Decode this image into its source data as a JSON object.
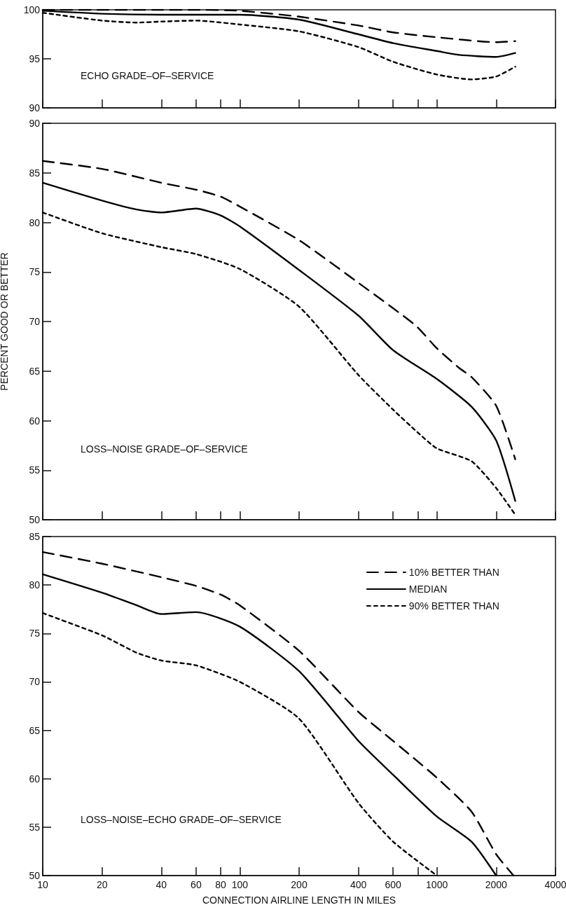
{
  "chart_data": [
    {
      "type": "line",
      "annotations": [
        "ECHO GRADE–OF–SERVICE"
      ],
      "log": "x",
      "xlim": [
        10,
        4000
      ],
      "xticks": [
        10,
        20,
        40,
        60,
        80,
        100,
        200,
        400,
        600,
        800,
        1000,
        2000,
        4000
      ],
      "ylim": [
        90,
        100
      ],
      "yticks": [
        90,
        95,
        100
      ],
      "tick_labels": "y",
      "grid": false,
      "marker": "none",
      "series": [
        {
          "color": "#000000",
          "line_style": "longdash",
          "x": [
            10,
            20,
            40,
            60,
            100,
            200,
            400,
            600,
            1000,
            2000,
            2500
          ],
          "values": [
            100,
            100,
            100,
            100,
            99.9,
            99.3,
            98.4,
            97.7,
            97.2,
            96.7,
            96.8
          ]
        },
        {
          "color": "#000000",
          "line_style": "solid",
          "x": [
            10,
            20,
            40,
            60,
            100,
            200,
            400,
            600,
            1000,
            1300,
            2000,
            2500
          ],
          "values": [
            99.9,
            99.6,
            99.5,
            99.5,
            99.5,
            99.0,
            97.5,
            96.6,
            95.8,
            95.4,
            95.2,
            95.6
          ]
        },
        {
          "color": "#000000",
          "line_style": "dashed",
          "x": [
            10,
            20,
            30,
            40,
            60,
            100,
            200,
            400,
            600,
            1000,
            1500,
            2000,
            2500
          ],
          "values": [
            99.7,
            98.9,
            98.7,
            98.8,
            98.9,
            98.5,
            97.8,
            96.2,
            94.7,
            93.4,
            92.9,
            93.2,
            94.2
          ]
        }
      ]
    },
    {
      "type": "line",
      "ylabel": "PERCENT GOOD OR BETTER",
      "annotations": [
        "LOSS–NOISE GRADE–OF–SERVICE"
      ],
      "log": "x",
      "xlim": [
        10,
        4000
      ],
      "xticks": [
        10,
        20,
        40,
        60,
        80,
        100,
        200,
        400,
        600,
        800,
        1000,
        2000,
        4000
      ],
      "ylim": [
        50,
        90
      ],
      "yticks": [
        50,
        55,
        60,
        65,
        70,
        75,
        80,
        85,
        90
      ],
      "tick_labels": "y",
      "grid": false,
      "marker": "none",
      "series": [
        {
          "color": "#000000",
          "line_style": "longdash",
          "x": [
            10,
            20,
            40,
            60,
            80,
            100,
            200,
            400,
            780,
            1000,
            1300,
            1500,
            2000,
            2500
          ],
          "values": [
            86.2,
            85.4,
            84.0,
            83.3,
            82.6,
            81.6,
            78.2,
            73.9,
            69.6,
            67.3,
            65.3,
            64.4,
            61.5,
            56.1
          ]
        },
        {
          "color": "#000000",
          "line_style": "solid",
          "x": [
            10,
            20,
            30,
            40,
            60,
            80,
            100,
            200,
            400,
            600,
            1000,
            1500,
            2000,
            2500
          ],
          "values": [
            84.0,
            82.2,
            81.3,
            81.0,
            81.4,
            80.7,
            79.6,
            75.2,
            70.6,
            67.1,
            64.2,
            61.4,
            58.0,
            51.9
          ]
        },
        {
          "color": "#000000",
          "line_style": "dashed",
          "x": [
            10,
            20,
            40,
            60,
            100,
            200,
            400,
            600,
            800,
            1000,
            1500,
            2000,
            2500
          ],
          "values": [
            81.0,
            78.9,
            77.5,
            76.8,
            75.3,
            71.5,
            64.6,
            61.1,
            58.8,
            57.2,
            55.9,
            53.2,
            50.5
          ]
        }
      ]
    },
    {
      "type": "line",
      "xlabel": "CONNECTION AIRLINE LENGTH IN MILES",
      "annotations": [
        "LOSS–NOISE–ECHO GRADE–OF–SERVICE"
      ],
      "log": "x",
      "xlim": [
        10,
        4000
      ],
      "xticks": [
        10,
        20,
        40,
        60,
        80,
        100,
        200,
        400,
        600,
        {
          "value": 800,
          "label": null
        },
        1000,
        2000,
        4000
      ],
      "ylim": [
        50,
        85
      ],
      "yticks": [
        50,
        55,
        60,
        65,
        70,
        75,
        80,
        85
      ],
      "grid": false,
      "marker": "none",
      "legend": "top right",
      "series": [
        {
          "name": "10% BETTER THAN",
          "color": "#000000",
          "line_style": "longdash",
          "x": [
            10,
            20,
            40,
            60,
            80,
            100,
            200,
            400,
            600,
            1000,
            1500,
            2000,
            2450
          ],
          "values": [
            83.4,
            82.2,
            80.8,
            79.9,
            79.0,
            77.9,
            73.2,
            66.9,
            63.9,
            60.1,
            56.6,
            52.2,
            50.0
          ]
        },
        {
          "name": "MEDIAN",
          "color": "#000000",
          "line_style": "solid",
          "x": [
            10,
            20,
            30,
            40,
            60,
            100,
            200,
            400,
            600,
            1000,
            1500,
            2000
          ],
          "values": [
            81.1,
            79.2,
            77.9,
            77.0,
            77.2,
            75.7,
            71.1,
            63.9,
            60.4,
            56.1,
            53.5,
            50.0
          ]
        },
        {
          "name": "90% BETTER THAN",
          "color": "#000000",
          "line_style": "dashed",
          "x": [
            10,
            20,
            30,
            40,
            60,
            100,
            200,
            400,
            600,
            1000
          ],
          "values": [
            77.1,
            74.8,
            73.0,
            72.2,
            71.7,
            70.0,
            66.2,
            57.5,
            53.5,
            50.0
          ]
        }
      ]
    }
  ]
}
